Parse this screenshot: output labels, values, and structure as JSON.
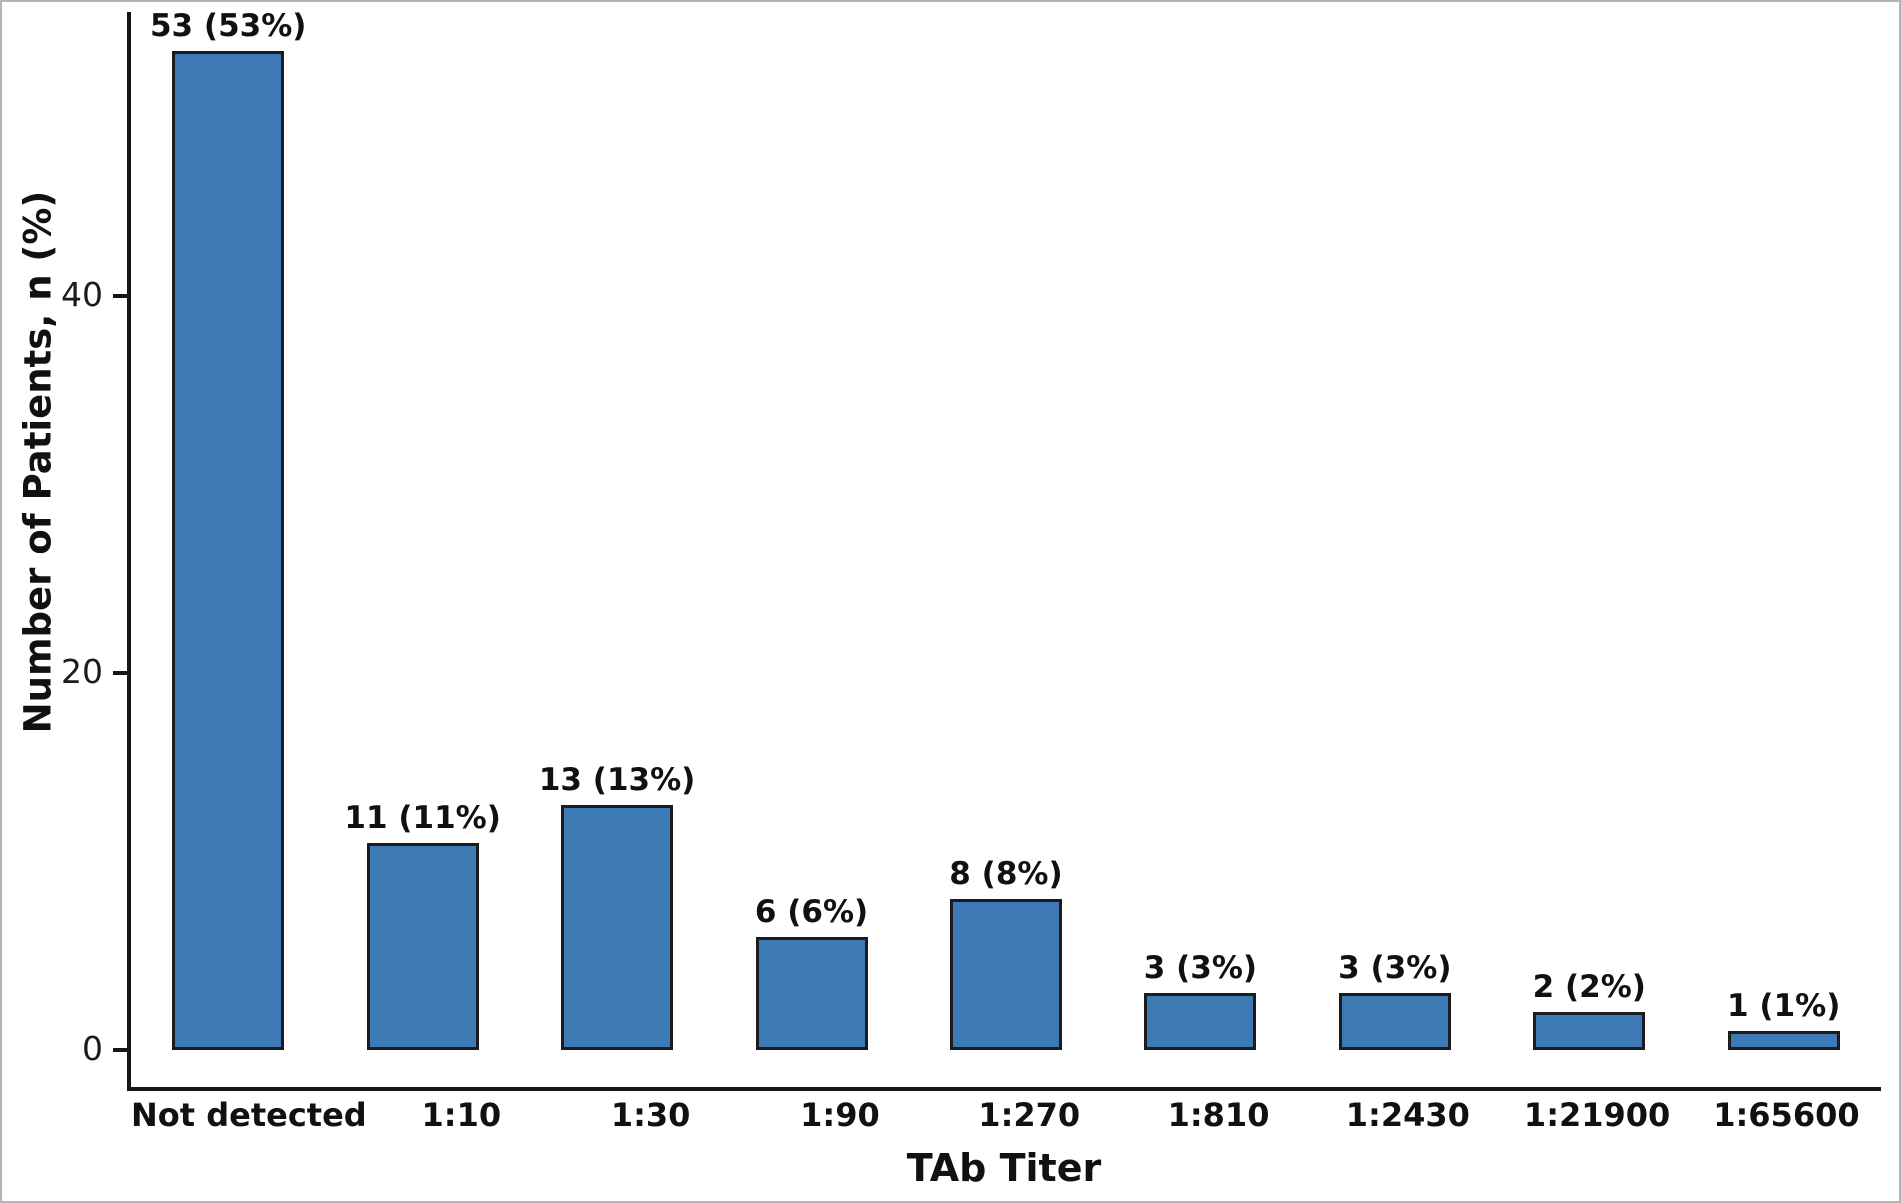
{
  "chart_data": {
    "type": "bar",
    "title": "",
    "xlabel": "TAb Titer",
    "ylabel": "Number of Patients, n (%)",
    "categories": [
      "Not detected",
      "1:10",
      "1:30",
      "1:90",
      "1:270",
      "1:810",
      "1:2430",
      "1:21900",
      "1:65600"
    ],
    "values": [
      53,
      11,
      13,
      6,
      8,
      3,
      3,
      2,
      1
    ],
    "bar_labels": [
      "53 (53%)",
      "11 (11%)",
      "13 (13%)",
      "6 (6%)",
      "8 (8%)",
      "3 (3%)",
      "3 (3%)",
      "2 (2%)",
      "1 (1%)"
    ],
    "yticks": [
      0,
      20,
      40
    ],
    "ylim": [
      0,
      55.5
    ],
    "grid": false,
    "legend": false,
    "bar_color": "#3d7ab5",
    "bar_edge_color": "#1c1c1c",
    "axis_color": "#161616"
  }
}
